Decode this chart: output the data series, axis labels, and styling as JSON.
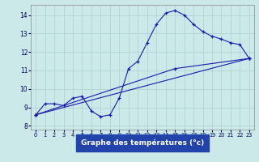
{
  "xlabel": "Graphe des températures (°c)",
  "xlim": [
    -0.5,
    23.5
  ],
  "ylim": [
    7.8,
    14.55
  ],
  "xticks": [
    0,
    1,
    2,
    3,
    4,
    5,
    6,
    7,
    8,
    9,
    10,
    11,
    12,
    13,
    14,
    15,
    16,
    17,
    18,
    19,
    20,
    21,
    22,
    23
  ],
  "yticks": [
    8,
    9,
    10,
    11,
    12,
    13,
    14
  ],
  "background_color": "#cce9e9",
  "grid_color": "#aacfcf",
  "line_color": "#1a1aaa",
  "xlabel_bg": "#2244aa",
  "xlabel_fg": "#ffffff",
  "line1_x": [
    0,
    1,
    2,
    3,
    4,
    5,
    6,
    7,
    8,
    9,
    10,
    11,
    12,
    13,
    14,
    15,
    16,
    17,
    18,
    19,
    20,
    21,
    22,
    23
  ],
  "line1_y": [
    8.6,
    9.2,
    9.2,
    9.1,
    9.5,
    9.6,
    8.8,
    8.5,
    8.6,
    9.5,
    11.1,
    11.5,
    12.5,
    13.5,
    14.1,
    14.25,
    14.0,
    13.5,
    13.1,
    12.85,
    12.7,
    12.5,
    12.4,
    11.65
  ],
  "line2_x": [
    0,
    23
  ],
  "line2_y": [
    8.6,
    11.65
  ],
  "line3_x": [
    0,
    15,
    23
  ],
  "line3_y": [
    8.6,
    11.1,
    11.65
  ]
}
